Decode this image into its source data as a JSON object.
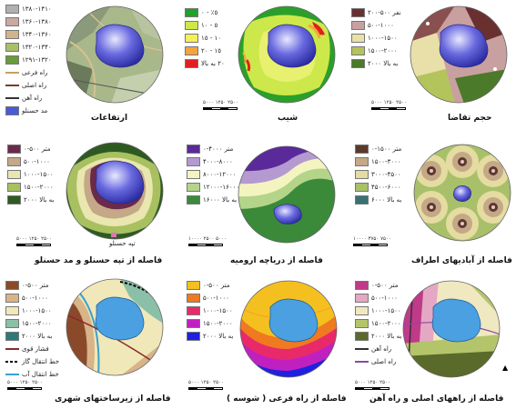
{
  "panels": [
    {
      "caption": "ارتفاعات",
      "legend": [
        "۱۳۸۰-۱۴۱۰",
        "۱۳۶۰-۱۳۸۰",
        "۱۳۴۰-۱۳۶۰",
        "۱۳۲۰-۱۳۴۰",
        "۱۲۹۱-۱۳۲۰",
        "راه فرعی",
        "راه اصلی",
        "راه آهن",
        "مد حسنلو"
      ],
      "colors": [
        "#b0b0b0",
        "#c9a9a0",
        "#d2b48c",
        "#a8c068",
        "#6a9a3a"
      ]
    },
    {
      "caption": "شیب",
      "legend": [
        "٥٪ - ٠",
        "٥ - ١٠",
        "١٠ - ١٥",
        "١٥ - ٢٠",
        "٢٠ به بالا"
      ],
      "colors": [
        "#22a02a",
        "#cde84a",
        "#f4f055",
        "#f2a63a",
        "#e02020"
      ],
      "scale": "۵۰۰۰      ۱۲۵۰ ۲۵۰۰"
    },
    {
      "caption": "حجم تقاضا",
      "legend": [
        "نفر ۵۰۰-۲۰۰",
        "۵۰۰-۱۰۰۰",
        "۱۰۰۰-۱۵۰۰",
        "۱۵۰۰-۲۰۰۰",
        "۲۰۰۰ به بالا"
      ],
      "colors": [
        "#6a3030",
        "#c9a0a0",
        "#e8e0a8",
        "#b4c45c",
        "#4a7a2a"
      ],
      "scale": "۵۰۰۰      ۱۲۵۰ ۲۵۰۰"
    },
    {
      "caption": "فاصله از تپه حسنلو و مد حسنلو",
      "legend": [
        "متر ۵۰۰-۰",
        "۵۰۰-۱۰۰۰",
        "۱۰۰۰-۱۵۰۰",
        "۱۵۰۰-۲۰۰۰",
        "۲۰۰۰ به بالا"
      ],
      "colors": [
        "#6b2a4a",
        "#c4a888",
        "#eae6b0",
        "#a8c060",
        "#2e5a22"
      ],
      "scale": "۵۰۰۰      ۱۲۵۰ ۲۵۰۰",
      "label": "تپه حسنلو"
    },
    {
      "caption": "فاصله از دریاچه ارومیه",
      "legend": [
        "متر ۴۰۰۰-۰",
        "۴۰۰۰-۸۰۰۰",
        "۸۰۰۰-۱۲۰۰۰",
        "۱۲۰۰۰-۱۶۰۰۰",
        "۱۶۰۰۰ به بالا"
      ],
      "colors": [
        "#5a2a9a",
        "#b49ad0",
        "#f4f4c0",
        "#b4d48a",
        "#3a8a3a"
      ],
      "scale": "۱۰۰۰۰      ۲۵۰۰ ۵۰۰۰"
    },
    {
      "caption": "فاصله از آبادیهای اطراف",
      "legend": [
        "متر ۱۵۰۰-۰",
        "۱۵۰۰-۳۰۰۰",
        "۳۰۰۰-۴۵۰۰",
        "۴۵۰۰-۶۰۰۰",
        "۶۰۰۰ به بالا"
      ],
      "colors": [
        "#5a3a2a",
        "#c4a888",
        "#e4dca0",
        "#a8c06a",
        "#3a7070"
      ],
      "scale": "۱۰۰۰۰      ۳۷۵۰ ۷۵۰۰"
    },
    {
      "caption": "فاصله از زیرساختهای شهری",
      "legend": [
        "متر ۵۰۰-۰",
        "۵۰۰-۱۰۰۰",
        "۱۰۰۰-۱۵۰۰",
        "۱۵۰۰-۲۰۰۰",
        "۲۰۰۰ به بالا",
        "فشار قوی",
        "خط انتقال گاز",
        "خط انتقال آب"
      ],
      "colors": [
        "#8a4a2a",
        "#d8b488",
        "#f0e8b8",
        "#8ac0a8",
        "#2a7a7a"
      ],
      "scale": "۵۰۰۰      ۱۲۵۰ ۲۵۰۰"
    },
    {
      "caption": "فاصله از راه فرعی ( شوسه )",
      "legend": [
        "متر ۵۰۰-۰",
        "۵۰۰-۱۰۰۰",
        "۱۰۰۰-۱۵۰۰",
        "۱۵۰۰-۲۰۰۰",
        "۲۰۰۰ به بالا"
      ],
      "colors": [
        "#f4c020",
        "#f07a20",
        "#e82a6a",
        "#c020c0",
        "#2020e0"
      ],
      "scale": "۵۰۰۰      ۱۲۵۰ ۲۵۰۰"
    },
    {
      "caption": "فاصله از راههای اصلی و راه آهن",
      "legend": [
        "متر ۵۰۰-۰",
        "۵۰۰-۱۰۰۰",
        "۱۰۰۰-۱۵۰۰",
        "۱۵۰۰-۲۰۰۰",
        "۲۰۰۰ به بالا",
        "راه آهن",
        "راه اصلی"
      ],
      "colors": [
        "#c03a8a",
        "#e4a8c4",
        "#f0e8c0",
        "#b4c46a",
        "#5a6a2a"
      ],
      "scale": "۵۰۰۰      ۱۲۵۰ ۲۵۰۰"
    }
  ]
}
